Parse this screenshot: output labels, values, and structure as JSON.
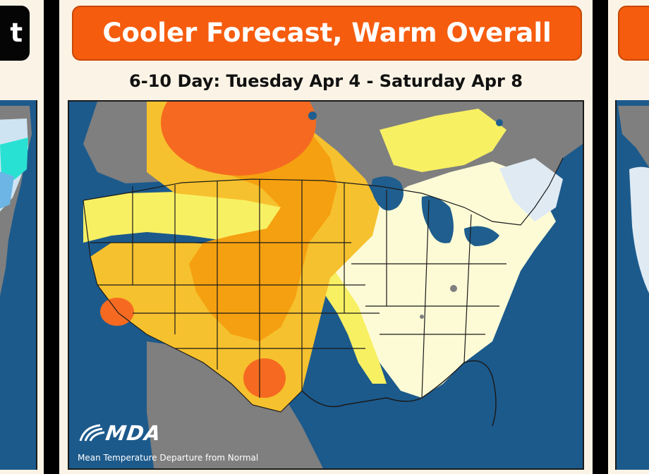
{
  "panels": {
    "left": {
      "banner_fragment": "t"
    },
    "center": {
      "title": "Cooler Forecast, Warm Overall",
      "subtitle": "6-10 Day: Tuesday Apr 4 - Saturday Apr 8",
      "map": {
        "logo": "MDA",
        "caption": "Mean Temperature Departure from Normal",
        "colors": {
          "ocean": "#1c5a8c",
          "outside_land": "#7f7f7f",
          "neutral": "#fdfbd6",
          "warm_light": "#f8f063",
          "warm": "#f6c12e",
          "warm_strong": "#f5a010",
          "warm_hot": "#f56a20",
          "cool": "#dfeaf3",
          "lake": "#1f5e8e",
          "border": "#1a1a1a"
        }
      }
    },
    "right": {
      "banner_fragment": ""
    }
  }
}
